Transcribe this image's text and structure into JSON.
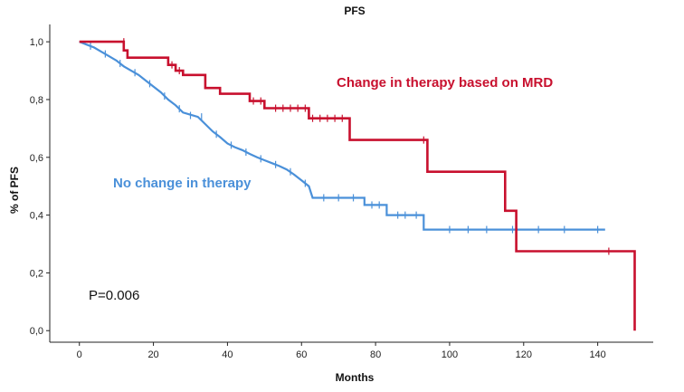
{
  "chart_data": {
    "type": "line",
    "title": "PFS",
    "xlabel": "Months",
    "ylabel": "% of PFS",
    "xlim": [
      -8,
      155
    ],
    "ylim": [
      -0.04,
      1.06
    ],
    "x_ticks": [
      0,
      20,
      40,
      60,
      80,
      100,
      120,
      140
    ],
    "y_ticks": [
      0.0,
      0.2,
      0.4,
      0.6,
      0.8,
      1.0
    ],
    "y_tick_labels": [
      "0,0",
      "0,2",
      "0,4",
      "0,6",
      "0,8",
      "1,0"
    ],
    "annotation": "P=0.006",
    "series": [
      {
        "name": "Change in therapy based on MRD",
        "color": "#c8102e",
        "label_text": "Change in therapy based on MRD",
        "step_points": [
          [
            0,
            1.0
          ],
          [
            12,
            1.0
          ],
          [
            12,
            0.97
          ],
          [
            13,
            0.97
          ],
          [
            13,
            0.945
          ],
          [
            24,
            0.945
          ],
          [
            24,
            0.92
          ],
          [
            26,
            0.92
          ],
          [
            26,
            0.9
          ],
          [
            28,
            0.9
          ],
          [
            28,
            0.885
          ],
          [
            34,
            0.885
          ],
          [
            34,
            0.84
          ],
          [
            38,
            0.84
          ],
          [
            38,
            0.82
          ],
          [
            46,
            0.82
          ],
          [
            46,
            0.795
          ],
          [
            50,
            0.795
          ],
          [
            50,
            0.77
          ],
          [
            62,
            0.77
          ],
          [
            62,
            0.735
          ],
          [
            73,
            0.735
          ],
          [
            73,
            0.66
          ],
          [
            94,
            0.66
          ],
          [
            94,
            0.55
          ],
          [
            115,
            0.55
          ],
          [
            115,
            0.415
          ],
          [
            118,
            0.415
          ],
          [
            118,
            0.275
          ],
          [
            150,
            0.275
          ],
          [
            150,
            0.0
          ]
        ],
        "censors": [
          [
            12,
            1.0
          ],
          [
            25,
            0.92
          ],
          [
            27,
            0.9
          ],
          [
            47,
            0.795
          ],
          [
            49,
            0.795
          ],
          [
            53,
            0.77
          ],
          [
            55,
            0.77
          ],
          [
            57,
            0.77
          ],
          [
            59,
            0.77
          ],
          [
            61,
            0.77
          ],
          [
            63,
            0.735
          ],
          [
            65,
            0.735
          ],
          [
            67,
            0.735
          ],
          [
            69,
            0.735
          ],
          [
            71,
            0.735
          ],
          [
            93,
            0.66
          ],
          [
            143,
            0.275
          ]
        ]
      },
      {
        "name": "No change in therapy",
        "color": "#4a90d9",
        "label_text": "No change in therapy",
        "step_points": [
          [
            0,
            1.0
          ],
          [
            2,
            0.99
          ],
          [
            4,
            0.98
          ],
          [
            6,
            0.965
          ],
          [
            8,
            0.95
          ],
          [
            10,
            0.935
          ],
          [
            12,
            0.915
          ],
          [
            14,
            0.9
          ],
          [
            16,
            0.885
          ],
          [
            18,
            0.865
          ],
          [
            20,
            0.845
          ],
          [
            22,
            0.825
          ],
          [
            24,
            0.8
          ],
          [
            26,
            0.78
          ],
          [
            28,
            0.755
          ],
          [
            32,
            0.74
          ],
          [
            34,
            0.715
          ],
          [
            36,
            0.69
          ],
          [
            38,
            0.67
          ],
          [
            40,
            0.648
          ],
          [
            42,
            0.635
          ],
          [
            44,
            0.625
          ],
          [
            46,
            0.612
          ],
          [
            48,
            0.6
          ],
          [
            50,
            0.59
          ],
          [
            52,
            0.58
          ],
          [
            54,
            0.57
          ],
          [
            56,
            0.558
          ],
          [
            58,
            0.54
          ],
          [
            60,
            0.52
          ],
          [
            62,
            0.5
          ],
          [
            63,
            0.46
          ],
          [
            77,
            0.46
          ],
          [
            77,
            0.435
          ],
          [
            83,
            0.435
          ],
          [
            83,
            0.4
          ],
          [
            93,
            0.4
          ],
          [
            93,
            0.35
          ],
          [
            142,
            0.35
          ]
        ],
        "censors": [
          [
            3,
            0.985
          ],
          [
            7,
            0.958
          ],
          [
            11,
            0.925
          ],
          [
            15,
            0.893
          ],
          [
            19,
            0.855
          ],
          [
            23,
            0.812
          ],
          [
            27,
            0.768
          ],
          [
            30,
            0.745
          ],
          [
            33,
            0.74
          ],
          [
            37,
            0.68
          ],
          [
            41,
            0.642
          ],
          [
            45,
            0.618
          ],
          [
            49,
            0.595
          ],
          [
            53,
            0.575
          ],
          [
            57,
            0.55
          ],
          [
            61,
            0.51
          ],
          [
            66,
            0.46
          ],
          [
            70,
            0.46
          ],
          [
            74,
            0.46
          ],
          [
            79,
            0.435
          ],
          [
            81,
            0.435
          ],
          [
            86,
            0.4
          ],
          [
            88,
            0.4
          ],
          [
            91,
            0.4
          ],
          [
            100,
            0.35
          ],
          [
            105,
            0.35
          ],
          [
            110,
            0.35
          ],
          [
            117,
            0.35
          ],
          [
            124,
            0.35
          ],
          [
            131,
            0.35
          ],
          [
            140,
            0.35
          ]
        ]
      }
    ]
  }
}
